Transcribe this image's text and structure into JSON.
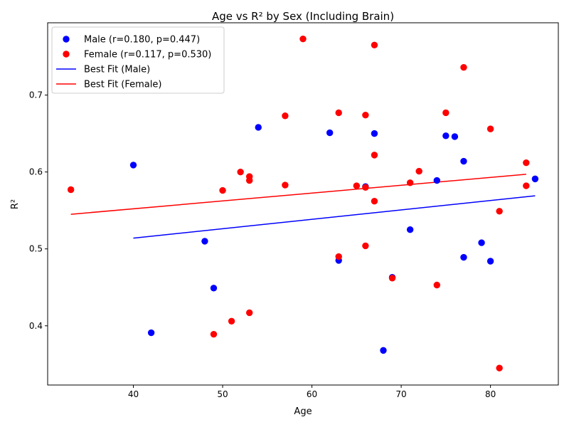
{
  "chart_data": {
    "type": "scatter",
    "title": "Age vs R² by Sex (Including Brain)",
    "xlabel": "Age",
    "ylabel": "R²",
    "xlim": [
      30.4,
      87.6
    ],
    "ylim": [
      0.323,
      0.794
    ],
    "xticks": [
      40,
      50,
      60,
      70,
      80
    ],
    "yticks": [
      0.4,
      0.5,
      0.6,
      0.7
    ],
    "xtick_labels": [
      "40",
      "50",
      "60",
      "70",
      "80"
    ],
    "ytick_labels": [
      "0.4",
      "0.5",
      "0.6",
      "0.7"
    ],
    "grid": false,
    "legend_position": "top-left",
    "series": [
      {
        "name": "Male (r=0.180, p=0.447)",
        "kind": "scatter",
        "color": "#0000ff",
        "points": [
          [
            40,
            0.609
          ],
          [
            42,
            0.391
          ],
          [
            48,
            0.51
          ],
          [
            49,
            0.449
          ],
          [
            54,
            0.658
          ],
          [
            62,
            0.651
          ],
          [
            63,
            0.485
          ],
          [
            66,
            0.581
          ],
          [
            67,
            0.65
          ],
          [
            68,
            0.368
          ],
          [
            69,
            0.463
          ],
          [
            71,
            0.525
          ],
          [
            74,
            0.589
          ],
          [
            75,
            0.647
          ],
          [
            76,
            0.646
          ],
          [
            77,
            0.614
          ],
          [
            77,
            0.489
          ],
          [
            79,
            0.508
          ],
          [
            80,
            0.484
          ],
          [
            85,
            0.591
          ]
        ]
      },
      {
        "name": "Female (r=0.117, p=0.530)",
        "kind": "scatter",
        "color": "#ff0000",
        "points": [
          [
            33,
            0.577
          ],
          [
            49,
            0.389
          ],
          [
            50,
            0.576
          ],
          [
            51,
            0.406
          ],
          [
            52,
            0.6
          ],
          [
            53,
            0.594
          ],
          [
            53,
            0.589
          ],
          [
            53,
            0.417
          ],
          [
            57,
            0.673
          ],
          [
            57,
            0.583
          ],
          [
            59,
            0.773
          ],
          [
            63,
            0.677
          ],
          [
            63,
            0.49
          ],
          [
            65,
            0.582
          ],
          [
            66,
            0.674
          ],
          [
            66,
            0.58
          ],
          [
            66,
            0.504
          ],
          [
            67,
            0.765
          ],
          [
            67,
            0.622
          ],
          [
            67,
            0.562
          ],
          [
            69,
            0.462
          ],
          [
            71,
            0.586
          ],
          [
            72,
            0.601
          ],
          [
            74,
            0.453
          ],
          [
            75,
            0.677
          ],
          [
            77,
            0.736
          ],
          [
            80,
            0.656
          ],
          [
            81,
            0.549
          ],
          [
            81,
            0.345
          ],
          [
            84,
            0.612
          ],
          [
            84,
            0.582
          ]
        ]
      },
      {
        "name": "Best Fit (Male)",
        "kind": "line",
        "color": "#0000ff",
        "points": [
          [
            40,
            0.514
          ],
          [
            85,
            0.569
          ]
        ]
      },
      {
        "name": "Best Fit (Female)",
        "kind": "line",
        "color": "#ff0000",
        "points": [
          [
            33,
            0.545
          ],
          [
            84,
            0.597
          ]
        ]
      }
    ]
  }
}
